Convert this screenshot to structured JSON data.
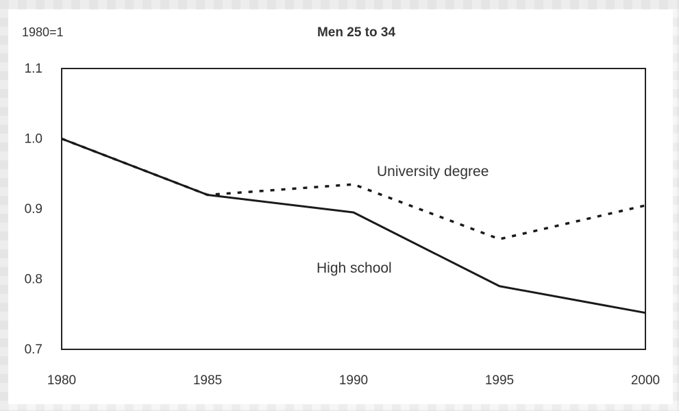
{
  "chart_data": {
    "type": "line",
    "title": "Men 25 to 34",
    "ylabel": "1980=1",
    "x": [
      "1980",
      "1985",
      "1990",
      "1995",
      "2000"
    ],
    "ylim": [
      0.7,
      1.1
    ],
    "yticks": [
      "0.7",
      "0.8",
      "0.9",
      "1.0",
      "1.1"
    ],
    "grid": false,
    "legend": "inline labels",
    "series": [
      {
        "name": "High school",
        "style": "solid",
        "values": [
          1.0,
          0.92,
          0.895,
          0.79,
          0.752
        ]
      },
      {
        "name": "University degree",
        "style": "dotted",
        "values": [
          1.0,
          0.92,
          0.935,
          0.857,
          0.905
        ]
      }
    ]
  }
}
